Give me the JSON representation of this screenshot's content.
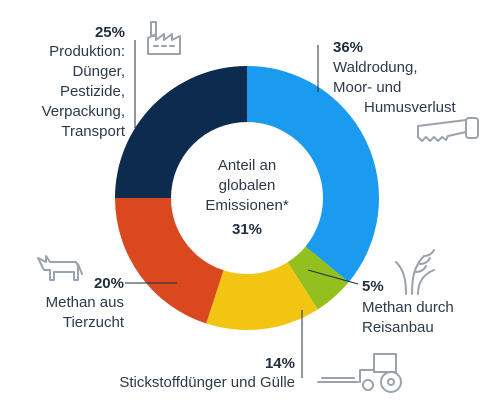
{
  "chart_data": {
    "type": "donut",
    "center": {
      "label_lines": [
        "Anteil an",
        "globalen",
        "Emissionen*"
      ],
      "value": "31%"
    },
    "slices": [
      {
        "name": "Waldrodung, Moor- und Humusverlust",
        "pct_label": "36%",
        "value": 36,
        "color": "#1a9bf0",
        "label_lines": [
          "Waldrodung,",
          "Moor- und",
          "Humusverlust"
        ]
      },
      {
        "name": "Methan durch Reisanbau",
        "pct_label": "5%",
        "value": 5,
        "color": "#93c01f",
        "label_lines": [
          "Methan durch",
          "Reisanbau"
        ]
      },
      {
        "name": "Stickstoffdünger und Gülle",
        "pct_label": "14%",
        "value": 14,
        "color": "#f2c513",
        "label_lines": [
          "Stickstoffdünger und Gülle"
        ]
      },
      {
        "name": "Methan aus Tierzucht",
        "pct_label": "20%",
        "value": 20,
        "color": "#d9481f",
        "label_lines": [
          "Methan aus",
          "Tierzucht"
        ]
      },
      {
        "name": "Produktion: Dünger, Pestizide, Verpackung, Transport",
        "pct_label": "25%",
        "value": 25,
        "color": "#0d2b4e",
        "label_lines": [
          "Produktion:",
          "Dünger,",
          "Pestizide,",
          "Verpackung,",
          "Transport"
        ]
      }
    ],
    "icons": [
      "factory-icon",
      "saw-icon",
      "rice-plant-icon",
      "tractor-icon",
      "cow-icon"
    ]
  }
}
